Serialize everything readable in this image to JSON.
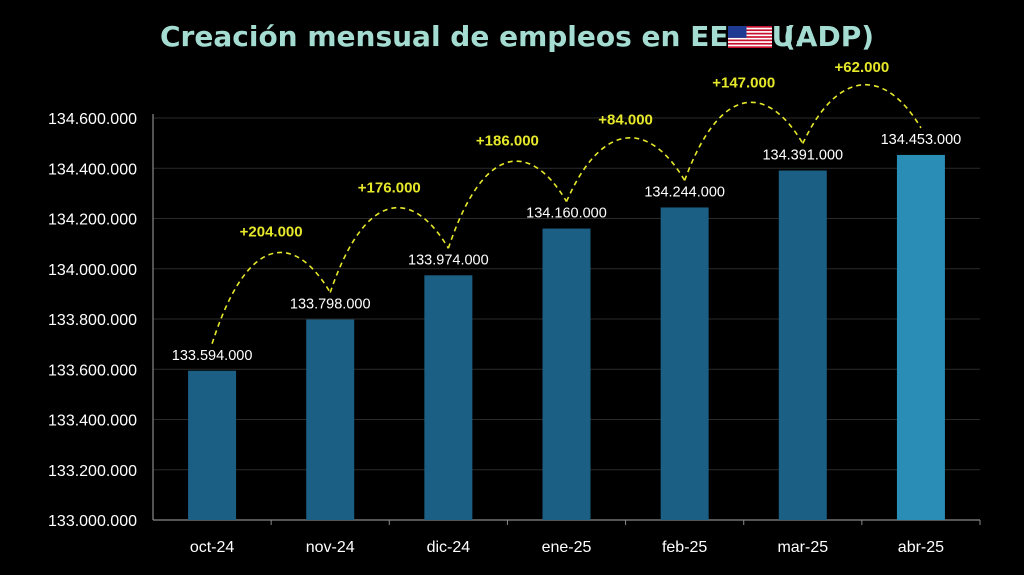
{
  "title": {
    "text": "Creación mensual de empleos en EE. UU.",
    "suffix": "(ADP)",
    "color": "#a5dcd2",
    "flag_icon": "us-flag-icon"
  },
  "chart_data": {
    "type": "bar",
    "categories": [
      "oct-24",
      "nov-24",
      "dic-24",
      "ene-25",
      "feb-25",
      "mar-25",
      "abr-25"
    ],
    "values": [
      133594000,
      133798000,
      133974000,
      134160000,
      134244000,
      134391000,
      134453000
    ],
    "value_labels": [
      "133.594.000",
      "133.798.000",
      "133.974.000",
      "134.160.000",
      "134.244.000",
      "134.391.000",
      "134.453.000"
    ],
    "monthly_changes": [
      "+204.000",
      "+176.000",
      "+186.000",
      "+84.000",
      "+147.000",
      "+62.000"
    ],
    "ylim": [
      133000000,
      134600000
    ],
    "yticks": [
      133000000,
      133200000,
      133400000,
      133600000,
      133800000,
      134000000,
      134200000,
      134400000,
      134600000
    ],
    "ytick_labels": [
      "133.000.000",
      "133.200.000",
      "133.400.000",
      "133.600.000",
      "133.800.000",
      "134.000.000",
      "134.200.000",
      "134.400.000",
      "134.600.000"
    ],
    "xlabel": "",
    "ylabel": "",
    "grid": true,
    "bar_color": "#1b5f84",
    "highlight_color": "#2a8db6",
    "highlight_index": 6,
    "change_color": "#e6e82a"
  }
}
